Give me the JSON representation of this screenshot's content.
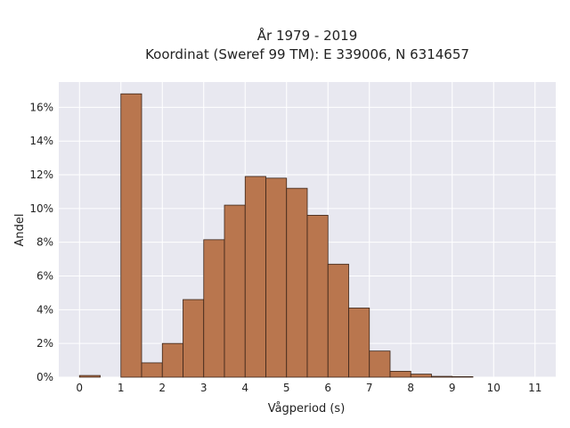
{
  "chart_data": {
    "type": "bar",
    "title_line1": "År 1979 - 2019",
    "title_line2": "Koordinat (Sweref 99 TM): E 339006, N 6314657",
    "xlabel": "Vågperiod (s)",
    "ylabel": "Andel",
    "bin_width": 0.5,
    "bins": [
      {
        "start": 0.0,
        "value": 0.1
      },
      {
        "start": 1.0,
        "value": 16.8
      },
      {
        "start": 1.5,
        "value": 0.85
      },
      {
        "start": 2.0,
        "value": 2.0
      },
      {
        "start": 2.5,
        "value": 4.6
      },
      {
        "start": 3.0,
        "value": 8.15
      },
      {
        "start": 3.5,
        "value": 10.2
      },
      {
        "start": 4.0,
        "value": 11.9
      },
      {
        "start": 4.5,
        "value": 11.8
      },
      {
        "start": 5.0,
        "value": 11.2
      },
      {
        "start": 5.5,
        "value": 9.6
      },
      {
        "start": 6.0,
        "value": 6.7
      },
      {
        "start": 6.5,
        "value": 4.1
      },
      {
        "start": 7.0,
        "value": 1.55
      },
      {
        "start": 7.5,
        "value": 0.35
      },
      {
        "start": 8.0,
        "value": 0.18
      },
      {
        "start": 8.5,
        "value": 0.05
      },
      {
        "start": 9.0,
        "value": 0.03
      }
    ],
    "xticks": [
      "0",
      "1",
      "2",
      "3",
      "4",
      "5",
      "6",
      "7",
      "8",
      "9",
      "10",
      "11"
    ],
    "yticks": [
      "0%",
      "2%",
      "4%",
      "6%",
      "8%",
      "10%",
      "12%",
      "14%",
      "16%"
    ],
    "xlim": [
      -0.5,
      11.5
    ],
    "ylim": [
      0,
      17.5
    ],
    "grid": true,
    "colors": {
      "bar_fill": "#b9764e",
      "bar_stroke": "#3a2418",
      "plot_bg": "#e8e8f0",
      "grid": "#ffffff"
    }
  }
}
